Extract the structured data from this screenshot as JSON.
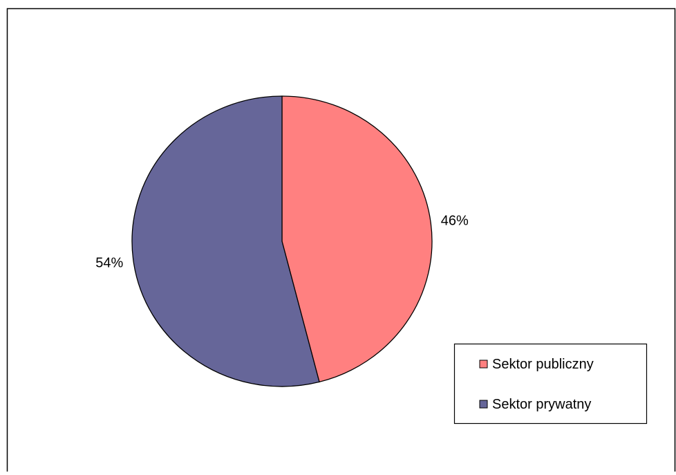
{
  "chart_data": {
    "type": "pie",
    "title": "",
    "slices": [
      {
        "name": "Sektor publiczny",
        "value": 46,
        "label": "46%",
        "color": "#FF8080"
      },
      {
        "name": "Sektor prywatny",
        "value": 54,
        "label": "54%",
        "color": "#666699"
      }
    ],
    "start_angle_deg": 0,
    "direction": "clockwise",
    "legend": {
      "placement": "bottom-right",
      "entries": [
        "Sektor publiczny",
        "Sektor prywatny"
      ]
    }
  }
}
